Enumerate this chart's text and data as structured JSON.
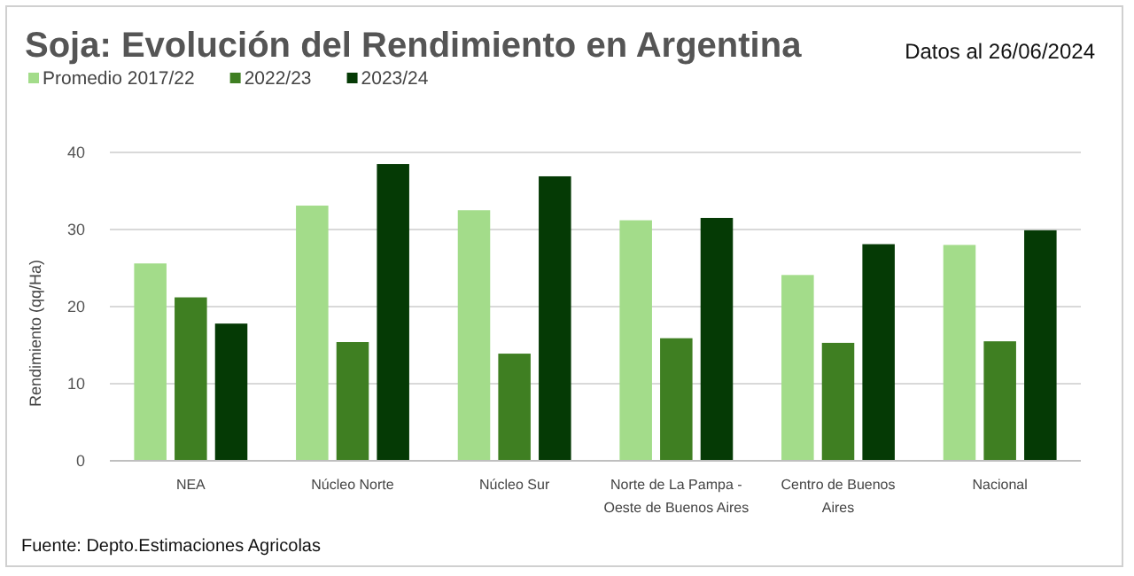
{
  "chart_data": {
    "type": "bar",
    "title": "Soja: Evolución del Rendimiento en Argentina",
    "subtitle": "Datos al 26/06/2024",
    "ylabel": "Rendimiento (qq/Ha)",
    "categories": [
      "NEA",
      "Núcleo Norte",
      "Núcleo Sur",
      "Norte de La Pampa - Oeste de Buenos Aires",
      "Centro de Buenos Aires",
      "Nacional"
    ],
    "series": [
      {
        "name": "Promedio 2017/22",
        "color": "#a3dc8a",
        "values": [
          25.6,
          33.1,
          32.5,
          31.2,
          24.1,
          28.0
        ]
      },
      {
        "name": "2022/23",
        "color": "#3f7f22",
        "values": [
          21.2,
          15.4,
          13.9,
          15.9,
          15.3,
          15.5
        ]
      },
      {
        "name": "2023/24",
        "color": "#053a05",
        "values": [
          17.8,
          38.5,
          36.9,
          31.5,
          28.1,
          29.9
        ]
      }
    ],
    "ylim": [
      0,
      40
    ],
    "yticks": [
      0,
      10,
      20,
      30,
      40
    ],
    "grid": "y",
    "legend": "top left",
    "annotations": [
      "Fuente: Depto.Estimaciones Agricolas"
    ]
  }
}
